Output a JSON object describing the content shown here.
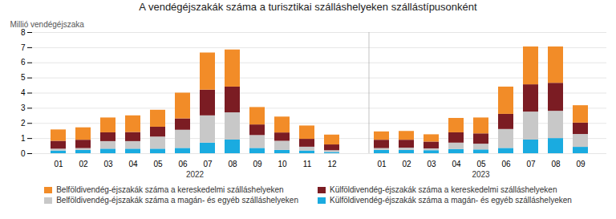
{
  "chart_data": {
    "type": "bar",
    "stacked": true,
    "title": "A vendégéjszakák száma a turisztikai szálláshelyeken szállástípusonként",
    "y_label": "Millió vendégéjszaka",
    "categories": [
      "01",
      "02",
      "03",
      "04",
      "05",
      "06",
      "07",
      "08",
      "09",
      "10",
      "11",
      "12",
      null,
      "01",
      "02",
      "03",
      "04",
      "05",
      "06",
      "07",
      "08",
      "09"
    ],
    "group_labels": [
      "2022",
      "2023"
    ],
    "series": [
      {
        "name": "Belföldivendég-éjszakák száma a kereskedelmi szálláshelyeken",
        "color": "#F28C28",
        "values": [
          0.75,
          0.82,
          0.98,
          1.1,
          1.12,
          1.7,
          2.45,
          2.45,
          1.15,
          1.05,
          0.88,
          0.65,
          null,
          0.55,
          0.58,
          0.48,
          0.95,
          1.05,
          1.8,
          2.5,
          2.4,
          1.15
        ]
      },
      {
        "name": "Külföldivendég-éjszakák száma a kereskedelmi szálláshelyeken",
        "color": "#7B1C23",
        "values": [
          0.52,
          0.55,
          0.58,
          0.6,
          0.65,
          0.75,
          1.7,
          1.7,
          0.7,
          0.55,
          0.52,
          0.38,
          null,
          0.55,
          0.52,
          0.45,
          0.68,
          0.68,
          1.0,
          1.8,
          1.85,
          0.75
        ]
      },
      {
        "name": "Belföldivendég-éjszakák száma a magán- és egyéb szálláshelyeken",
        "color": "#C8C8C8",
        "values": [
          0.12,
          0.12,
          0.5,
          0.5,
          0.8,
          1.2,
          1.8,
          1.8,
          0.85,
          0.6,
          0.25,
          0.12,
          null,
          0.12,
          0.15,
          0.12,
          0.42,
          0.38,
          1.25,
          1.85,
          1.8,
          0.85
        ]
      },
      {
        "name": "Külföldivendég-éjszakák száma a magán- és egyéb szálláshelyeken",
        "color": "#1AABE0",
        "values": [
          0.18,
          0.22,
          0.3,
          0.3,
          0.3,
          0.35,
          0.7,
          0.9,
          0.35,
          0.22,
          0.18,
          0.08,
          null,
          0.22,
          0.22,
          0.2,
          0.28,
          0.25,
          0.35,
          0.9,
          1.0,
          0.42
        ]
      }
    ],
    "ylim": [
      0,
      8
    ],
    "yticks": [
      0,
      1,
      2,
      3,
      4,
      5,
      6,
      7,
      8
    ],
    "grid": true,
    "legend": "bottom"
  }
}
